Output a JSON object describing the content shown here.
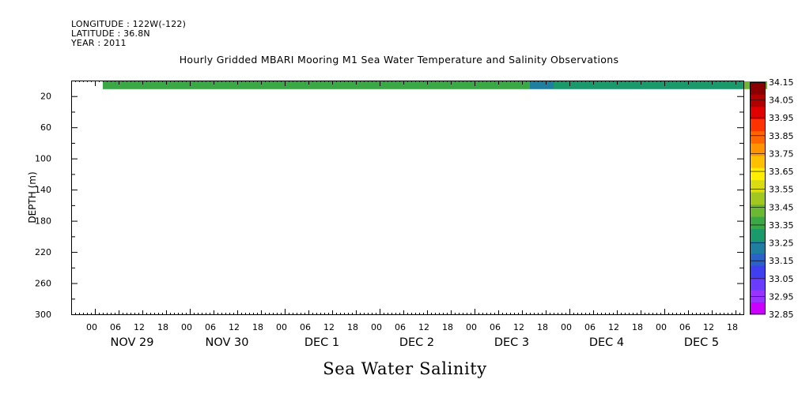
{
  "header": {
    "longitude": "LONGITUDE : 122W(-122)",
    "latitude": "LATITUDE : 36.8N",
    "year": "YEAR : 2011"
  },
  "chart_data": {
    "type": "heatmap",
    "title": "Hourly Gridded MBARI Mooring M1 Sea Water Temperature and Salinity Observations",
    "xlabel": "Sea Water Salinity",
    "ylabel": "DEPTH (m)",
    "ylim": [
      300,
      0
    ],
    "y_ticks": [
      20,
      60,
      100,
      140,
      180,
      220,
      260,
      300
    ],
    "x_hour_labels": [
      "00",
      "06",
      "12",
      "18",
      "00",
      "06",
      "12",
      "18",
      "00",
      "06",
      "12",
      "18",
      "00",
      "06",
      "12",
      "18",
      "00",
      "06",
      "12",
      "18",
      "00",
      "06",
      "12",
      "18",
      "00",
      "06",
      "12",
      "18"
    ],
    "x_day_labels": [
      "NOV 29",
      "NOV 30",
      "DEC  1",
      "DEC  2",
      "DEC  3",
      "DEC  4",
      "DEC  5"
    ],
    "data_start_hour": 0,
    "data_end_hour": 168,
    "depth_band": [
      1,
      11
    ],
    "salinity_segments": [
      {
        "hours": [
          0,
          48
        ],
        "value": 33.3
      },
      {
        "hours": [
          48,
          108
        ],
        "value": 33.3
      },
      {
        "hours": [
          108,
          114
        ],
        "value": 33.05
      },
      {
        "hours": [
          114,
          162
        ],
        "value": 33.2
      },
      {
        "hours": [
          162,
          168
        ],
        "value": 33.35
      }
    ],
    "colorbar": {
      "levels": [
        32.85,
        32.95,
        33.05,
        33.15,
        33.25,
        33.35,
        33.45,
        33.55,
        33.65,
        33.75,
        33.85,
        33.95,
        34.05,
        34.15
      ],
      "colors": [
        "#cc00ff",
        "#9933ff",
        "#6a3cff",
        "#3f3ff0",
        "#2a62c8",
        "#1f7fa0",
        "#1a9a6a",
        "#3aa845",
        "#6cb832",
        "#a2c820",
        "#d8dc10",
        "#ffee00",
        "#ffc000",
        "#ff9400",
        "#ff6600",
        "#ff3300",
        "#e00000",
        "#b00000",
        "#8a0000"
      ]
    }
  }
}
